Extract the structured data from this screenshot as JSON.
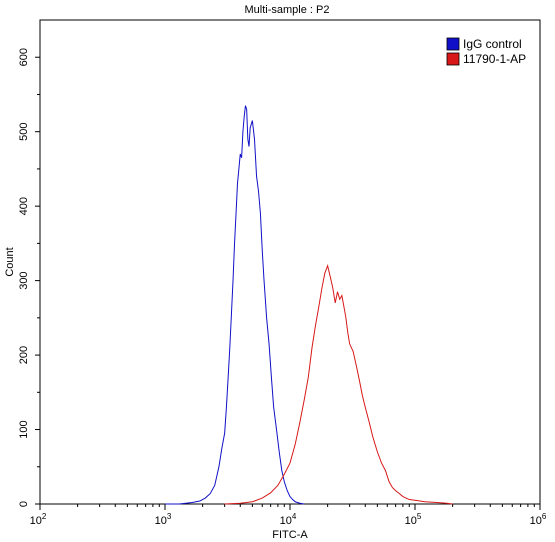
{
  "chart_data": {
    "type": "line",
    "title": "Multi-sample : P2",
    "xlabel": "FITC-A",
    "ylabel": "Count",
    "x_scale": "log",
    "xlim": [
      100,
      1000000
    ],
    "ylim": [
      0,
      650
    ],
    "x_ticks": [
      {
        "value": 100,
        "base": "10",
        "exp": "2"
      },
      {
        "value": 1000,
        "base": "10",
        "exp": "3"
      },
      {
        "value": 10000,
        "base": "10",
        "exp": "4"
      },
      {
        "value": 100000,
        "base": "10",
        "exp": "5"
      },
      {
        "value": 1000000,
        "base": "10",
        "exp": "6"
      }
    ],
    "y_ticks": [
      "0",
      "100",
      "200",
      "300",
      "400",
      "500",
      "600"
    ],
    "grid": false,
    "legend_position": "top-right",
    "series": [
      {
        "name": "IgG control",
        "color": "#1010c8",
        "points": [
          [
            1000,
            0
          ],
          [
            1300,
            0
          ],
          [
            1650,
            2
          ],
          [
            1900,
            4
          ],
          [
            2100,
            8
          ],
          [
            2300,
            14
          ],
          [
            2500,
            25
          ],
          [
            2700,
            50
          ],
          [
            2850,
            75
          ],
          [
            3000,
            95
          ],
          [
            3100,
            130
          ],
          [
            3200,
            170
          ],
          [
            3300,
            210
          ],
          [
            3400,
            255
          ],
          [
            3500,
            300
          ],
          [
            3600,
            350
          ],
          [
            3700,
            390
          ],
          [
            3800,
            430
          ],
          [
            3900,
            450
          ],
          [
            4000,
            470
          ],
          [
            4100,
            465
          ],
          [
            4200,
            500
          ],
          [
            4300,
            520
          ],
          [
            4400,
            535
          ],
          [
            4500,
            530
          ],
          [
            4600,
            490
          ],
          [
            4700,
            480
          ],
          [
            4800,
            505
          ],
          [
            4900,
            510
          ],
          [
            5000,
            515
          ],
          [
            5200,
            490
          ],
          [
            5400,
            440
          ],
          [
            5600,
            420
          ],
          [
            5800,
            390
          ],
          [
            6000,
            340
          ],
          [
            6200,
            300
          ],
          [
            6500,
            250
          ],
          [
            6800,
            215
          ],
          [
            7100,
            170
          ],
          [
            7400,
            130
          ],
          [
            7800,
            100
          ],
          [
            8200,
            70
          ],
          [
            8600,
            45
          ],
          [
            9000,
            30
          ],
          [
            9500,
            18
          ],
          [
            10000,
            10
          ],
          [
            10500,
            6
          ],
          [
            11000,
            3
          ],
          [
            12000,
            1
          ],
          [
            13000,
            0
          ]
        ]
      },
      {
        "name": "11790-1-AP",
        "color": "#d81818",
        "points": [
          [
            3000,
            0
          ],
          [
            4000,
            1
          ],
          [
            5000,
            3
          ],
          [
            6000,
            8
          ],
          [
            7000,
            15
          ],
          [
            8000,
            25
          ],
          [
            9000,
            40
          ],
          [
            10000,
            55
          ],
          [
            11000,
            80
          ],
          [
            12000,
            110
          ],
          [
            13000,
            140
          ],
          [
            14000,
            170
          ],
          [
            15000,
            210
          ],
          [
            16000,
            240
          ],
          [
            17000,
            265
          ],
          [
            18000,
            290
          ],
          [
            19000,
            310
          ],
          [
            20000,
            320
          ],
          [
            21000,
            305
          ],
          [
            22000,
            290
          ],
          [
            23000,
            270
          ],
          [
            24000,
            285
          ],
          [
            25000,
            275
          ],
          [
            26000,
            280
          ],
          [
            27000,
            265
          ],
          [
            28000,
            250
          ],
          [
            29000,
            230
          ],
          [
            30000,
            215
          ],
          [
            32000,
            205
          ],
          [
            34000,
            185
          ],
          [
            36000,
            165
          ],
          [
            38000,
            145
          ],
          [
            40000,
            130
          ],
          [
            43000,
            110
          ],
          [
            46000,
            90
          ],
          [
            50000,
            70
          ],
          [
            54000,
            55
          ],
          [
            58000,
            45
          ],
          [
            62000,
            30
          ],
          [
            66000,
            22
          ],
          [
            70000,
            18
          ],
          [
            75000,
            14
          ],
          [
            80000,
            10
          ],
          [
            90000,
            6
          ],
          [
            100000,
            5
          ],
          [
            120000,
            3
          ],
          [
            150000,
            2
          ],
          [
            180000,
            1
          ],
          [
            200000,
            0
          ]
        ]
      }
    ]
  }
}
